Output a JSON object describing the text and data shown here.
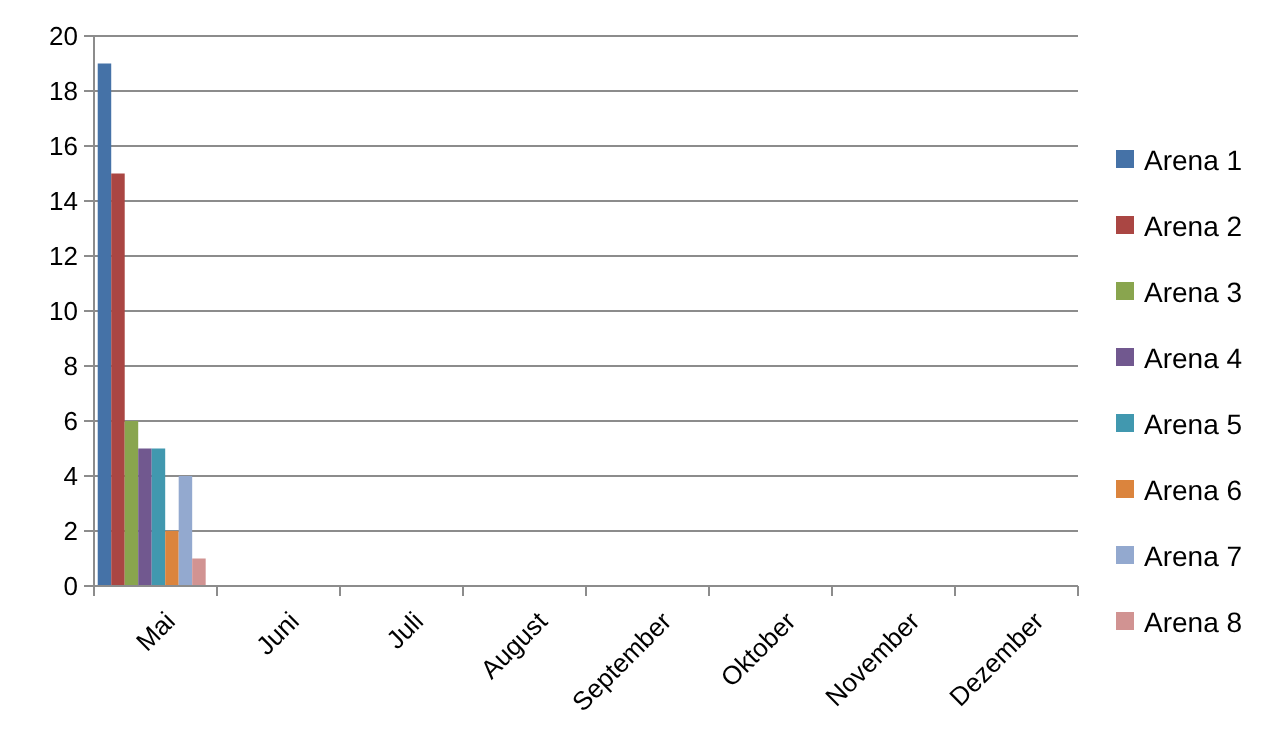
{
  "chart_data": {
    "type": "bar",
    "categories": [
      "Mai",
      "Juni",
      "Juli",
      "August",
      "September",
      "Oktober",
      "November",
      "Dezember"
    ],
    "series": [
      {
        "name": "Arena 1",
        "color": "#4572a7",
        "values": [
          19,
          0,
          0,
          0,
          0,
          0,
          0,
          0
        ]
      },
      {
        "name": "Arena 2",
        "color": "#aa4643",
        "values": [
          15,
          0,
          0,
          0,
          0,
          0,
          0,
          0
        ]
      },
      {
        "name": "Arena 3",
        "color": "#89a54e",
        "values": [
          6,
          0,
          0,
          0,
          0,
          0,
          0,
          0
        ]
      },
      {
        "name": "Arena 4",
        "color": "#71588f",
        "values": [
          5,
          0,
          0,
          0,
          0,
          0,
          0,
          0
        ]
      },
      {
        "name": "Arena 5",
        "color": "#4198af",
        "values": [
          5,
          0,
          0,
          0,
          0,
          0,
          0,
          0
        ]
      },
      {
        "name": "Arena 6",
        "color": "#db843d",
        "values": [
          2,
          0,
          0,
          0,
          0,
          0,
          0,
          0
        ]
      },
      {
        "name": "Arena 7",
        "color": "#93a9cf",
        "values": [
          4,
          0,
          0,
          0,
          0,
          0,
          0,
          0
        ]
      },
      {
        "name": "Arena 8",
        "color": "#d19392",
        "values": [
          1,
          0,
          0,
          0,
          0,
          0,
          0,
          0
        ]
      }
    ],
    "ylim": [
      0,
      20
    ],
    "yticks": [
      0,
      2,
      4,
      6,
      8,
      10,
      12,
      14,
      16,
      18,
      20
    ],
    "grid": "y",
    "legend": "right"
  }
}
